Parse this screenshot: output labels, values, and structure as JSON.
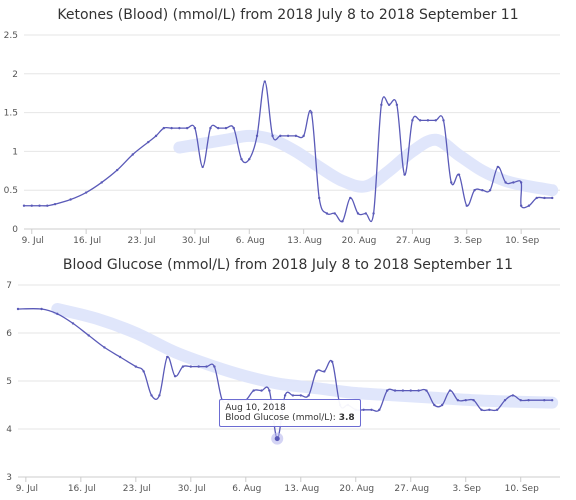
{
  "chart_data": [
    {
      "type": "line",
      "title": "Ketones (Blood) (mmol/L) from 2018 July 8 to 2018 September 11",
      "xlim": [
        "2018-07-08",
        "2018-09-11"
      ],
      "ylim": [
        0,
        2.5
      ],
      "yticks": [
        "0",
        "0.5",
        "1",
        "1.5",
        "2",
        "2.5"
      ],
      "ytick_values": [
        0,
        0.5,
        1,
        1.5,
        2,
        2.5
      ],
      "xtick_dates": [
        "2018-07-09",
        "2018-07-16",
        "2018-07-23",
        "2018-07-30",
        "2018-08-06",
        "2018-08-13",
        "2018-08-20",
        "2018-08-27",
        "2018-09-03",
        "2018-09-10"
      ],
      "xticks": [
        "9. Jul",
        "16. Jul",
        "23. Jul",
        "30. Jul",
        "6. Aug",
        "13. Aug",
        "20. Aug",
        "27. Aug",
        "3. Sep",
        "10. Sep"
      ],
      "grid": true,
      "colors": {
        "line": "#5a5ab8",
        "trend": "#dde3fb"
      },
      "series": [
        {
          "values": [
            [
              "2018-07-08",
              0.3
            ],
            [
              "2018-07-09",
              0.3
            ],
            [
              "2018-07-10",
              0.3
            ],
            [
              "2018-07-11",
              0.3
            ],
            [
              "2018-07-12",
              0.32
            ],
            [
              "2018-07-14",
              0.38
            ],
            [
              "2018-07-16",
              0.47
            ],
            [
              "2018-07-18",
              0.6
            ],
            [
              "2018-07-20",
              0.76
            ],
            [
              "2018-07-22",
              0.96
            ],
            [
              "2018-07-24",
              1.12
            ],
            [
              "2018-07-25",
              1.2
            ],
            [
              "2018-07-26",
              1.3
            ],
            [
              "2018-07-27",
              1.3
            ],
            [
              "2018-07-28",
              1.3
            ],
            [
              "2018-07-29",
              1.3
            ],
            [
              "2018-07-30",
              1.3
            ],
            [
              "2018-07-31",
              0.8
            ],
            [
              "2018-08-01",
              1.3
            ],
            [
              "2018-08-02",
              1.3
            ],
            [
              "2018-08-03",
              1.3
            ],
            [
              "2018-08-04",
              1.3
            ],
            [
              "2018-08-05",
              0.9
            ],
            [
              "2018-08-06",
              0.9
            ],
            [
              "2018-08-07",
              1.2
            ],
            [
              "2018-08-08",
              1.9
            ],
            [
              "2018-08-09",
              1.2
            ],
            [
              "2018-08-10",
              1.2
            ],
            [
              "2018-08-11",
              1.2
            ],
            [
              "2018-08-12",
              1.2
            ],
            [
              "2018-08-13",
              1.2
            ],
            [
              "2018-08-14",
              1.5
            ],
            [
              "2018-08-15",
              0.4
            ],
            [
              "2018-08-16",
              0.2
            ],
            [
              "2018-08-17",
              0.2
            ],
            [
              "2018-08-18",
              0.1
            ],
            [
              "2018-08-19",
              0.4
            ],
            [
              "2018-08-20",
              0.2
            ],
            [
              "2018-08-21",
              0.2
            ],
            [
              "2018-08-22",
              0.2
            ],
            [
              "2018-08-23",
              1.6
            ],
            [
              "2018-08-24",
              1.6
            ],
            [
              "2018-08-25",
              1.6
            ],
            [
              "2018-08-26",
              0.7
            ],
            [
              "2018-08-27",
              1.4
            ],
            [
              "2018-08-28",
              1.4
            ],
            [
              "2018-08-29",
              1.4
            ],
            [
              "2018-08-30",
              1.4
            ],
            [
              "2018-08-31",
              1.4
            ],
            [
              "2018-09-01",
              0.6
            ],
            [
              "2018-09-02",
              0.7
            ],
            [
              "2018-09-03",
              0.3
            ],
            [
              "2018-09-04",
              0.5
            ],
            [
              "2018-09-05",
              0.5
            ],
            [
              "2018-09-06",
              0.5
            ],
            [
              "2018-09-07",
              0.8
            ],
            [
              "2018-09-08",
              0.6
            ],
            [
              "2018-09-09",
              0.6
            ],
            [
              "2018-09-10",
              0.6
            ],
            [
              "2018-09-10",
              0.3
            ],
            [
              "2018-09-11",
              0.3
            ],
            [
              "2018-09-12",
              0.4
            ],
            [
              "2018-09-13",
              0.4
            ],
            [
              "2018-09-14",
              0.4
            ]
          ]
        },
        {
          "values": [
            [
              "2018-07-28",
              1.05
            ],
            [
              "2018-07-31",
              1.1
            ],
            [
              "2018-08-03",
              1.15
            ],
            [
              "2018-08-06",
              1.2
            ],
            [
              "2018-08-09",
              1.15
            ],
            [
              "2018-08-12",
              1.0
            ],
            [
              "2018-08-15",
              0.8
            ],
            [
              "2018-08-18",
              0.62
            ],
            [
              "2018-08-21",
              0.55
            ],
            [
              "2018-08-24",
              0.75
            ],
            [
              "2018-08-27",
              1.0
            ],
            [
              "2018-08-30",
              1.15
            ],
            [
              "2018-09-02",
              0.95
            ],
            [
              "2018-09-05",
              0.75
            ],
            [
              "2018-09-08",
              0.62
            ],
            [
              "2018-09-11",
              0.55
            ],
            [
              "2018-09-14",
              0.5
            ]
          ]
        }
      ]
    },
    {
      "type": "line",
      "title": "Blood Glucose (mmol/L) from 2018 July 8 to 2018 September 11",
      "xlim": [
        "2018-07-08",
        "2018-09-11"
      ],
      "ylim": [
        3,
        7
      ],
      "yticks": [
        "3",
        "4",
        "5",
        "6",
        "7"
      ],
      "ytick_values": [
        3,
        4,
        5,
        6,
        7
      ],
      "xtick_dates": [
        "2018-07-09",
        "2018-07-16",
        "2018-07-23",
        "2018-07-30",
        "2018-08-06",
        "2018-08-13",
        "2018-08-20",
        "2018-08-27",
        "2018-09-03",
        "2018-09-10"
      ],
      "xticks": [
        "9. Jul",
        "16. Jul",
        "23. Jul",
        "30. Jul",
        "6. Aug",
        "13. Aug",
        "20. Aug",
        "27. Aug",
        "3. Sep",
        "10. Sep"
      ],
      "grid": true,
      "colors": {
        "line": "#5a5ab8",
        "trend": "#dde3fb",
        "highlight": "#b8b8ec"
      },
      "series": [
        {
          "values": [
            [
              "2018-07-08",
              6.5
            ],
            [
              "2018-07-11",
              6.5
            ],
            [
              "2018-07-13",
              6.4
            ],
            [
              "2018-07-15",
              6.2
            ],
            [
              "2018-07-17",
              5.95
            ],
            [
              "2018-07-19",
              5.7
            ],
            [
              "2018-07-21",
              5.5
            ],
            [
              "2018-07-23",
              5.3
            ],
            [
              "2018-07-24",
              5.2
            ],
            [
              "2018-07-25",
              4.7
            ],
            [
              "2018-07-26",
              4.7
            ],
            [
              "2018-07-27",
              5.5
            ],
            [
              "2018-07-28",
              5.1
            ],
            [
              "2018-07-29",
              5.3
            ],
            [
              "2018-07-30",
              5.3
            ],
            [
              "2018-07-31",
              5.3
            ],
            [
              "2018-08-01",
              5.3
            ],
            [
              "2018-08-02",
              5.3
            ],
            [
              "2018-08-03",
              4.6
            ],
            [
              "2018-08-04",
              4.6
            ],
            [
              "2018-08-05",
              4.6
            ],
            [
              "2018-08-06",
              4.6
            ],
            [
              "2018-08-07",
              4.8
            ],
            [
              "2018-08-08",
              4.8
            ],
            [
              "2018-08-09",
              4.8
            ],
            [
              "2018-08-10",
              3.8
            ],
            [
              "2018-08-11",
              4.7
            ],
            [
              "2018-08-12",
              4.7
            ],
            [
              "2018-08-13",
              4.7
            ],
            [
              "2018-08-14",
              4.7
            ],
            [
              "2018-08-15",
              5.2
            ],
            [
              "2018-08-16",
              5.2
            ],
            [
              "2018-08-17",
              5.4
            ],
            [
              "2018-08-18",
              4.5
            ],
            [
              "2018-08-19",
              4.5
            ],
            [
              "2018-08-20",
              4.4
            ],
            [
              "2018-08-21",
              4.4
            ],
            [
              "2018-08-22",
              4.4
            ],
            [
              "2018-08-23",
              4.4
            ],
            [
              "2018-08-24",
              4.8
            ],
            [
              "2018-08-25",
              4.8
            ],
            [
              "2018-08-26",
              4.8
            ],
            [
              "2018-08-27",
              4.8
            ],
            [
              "2018-08-28",
              4.8
            ],
            [
              "2018-08-29",
              4.8
            ],
            [
              "2018-08-30",
              4.5
            ],
            [
              "2018-08-31",
              4.5
            ],
            [
              "2018-09-01",
              4.8
            ],
            [
              "2018-09-02",
              4.6
            ],
            [
              "2018-09-03",
              4.6
            ],
            [
              "2018-09-04",
              4.6
            ],
            [
              "2018-09-05",
              4.4
            ],
            [
              "2018-09-06",
              4.4
            ],
            [
              "2018-09-07",
              4.4
            ],
            [
              "2018-09-08",
              4.6
            ],
            [
              "2018-09-09",
              4.7
            ],
            [
              "2018-09-10",
              4.6
            ],
            [
              "2018-09-11",
              4.6
            ],
            [
              "2018-09-13",
              4.6
            ],
            [
              "2018-09-14",
              4.6
            ]
          ]
        },
        {
          "values": [
            [
              "2018-07-13",
              6.5
            ],
            [
              "2018-07-18",
              6.3
            ],
            [
              "2018-07-23",
              6.0
            ],
            [
              "2018-07-28",
              5.6
            ],
            [
              "2018-08-02",
              5.3
            ],
            [
              "2018-08-06",
              5.1
            ],
            [
              "2018-08-10",
              4.95
            ],
            [
              "2018-08-15",
              4.85
            ],
            [
              "2018-08-20",
              4.75
            ],
            [
              "2018-08-25",
              4.7
            ],
            [
              "2018-08-30",
              4.65
            ],
            [
              "2018-09-04",
              4.6
            ],
            [
              "2018-09-09",
              4.57
            ],
            [
              "2018-09-14",
              4.55
            ]
          ]
        }
      ],
      "tooltip": {
        "date": "Aug 10, 2018",
        "label": "Blood Glucose (mmol/L):",
        "value": "3.8",
        "point": [
          "2018-08-10",
          3.8
        ]
      }
    }
  ]
}
